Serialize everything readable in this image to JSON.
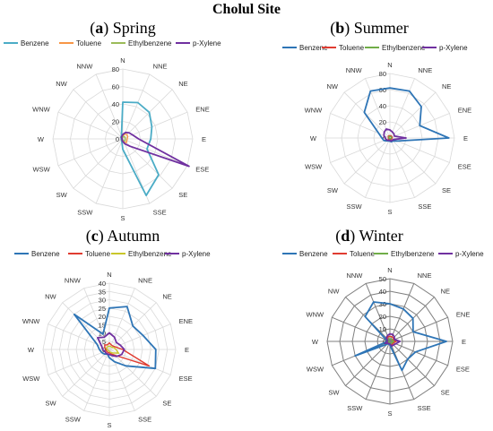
{
  "figure": {
    "title": "Cholul Site"
  },
  "colors": {
    "Benzene": "#2e75b6",
    "Toluene": "#ed7d31",
    "Ethylbenzene": "#a9d18e",
    "p-Xylene": "#7030a0",
    "Toluene_red": "#e03c31",
    "Ethylbenzene_green": "#70ad47"
  },
  "chart_data": [
    {
      "type": "radar",
      "panel_letter": "(a)",
      "panel_name": "Spring",
      "directions": [
        "N",
        "NNE",
        "NE",
        "ENE",
        "E",
        "ESE",
        "SE",
        "SSE",
        "S",
        "SSW",
        "SW",
        "WSW",
        "W",
        "WNW",
        "NW",
        "NNW"
      ],
      "rmax": 80,
      "ticks": [
        0,
        20,
        40,
        60,
        80
      ],
      "legend_position": "top",
      "series": [
        {
          "name": "Benzene",
          "color": "#4bacc6",
          "values": [
            42,
            45,
            43,
            36,
            32,
            30,
            58,
            70,
            12,
            3,
            2,
            2,
            1,
            2,
            3,
            4
          ]
        },
        {
          "name": "Toluene",
          "color": "#f79646",
          "values": [
            3,
            6,
            7,
            6,
            5,
            5,
            6,
            4,
            2,
            1,
            1,
            1,
            1,
            1,
            1,
            2
          ]
        },
        {
          "name": "Ethylbenzene",
          "color": "#9bbb59",
          "values": [
            2,
            3,
            3,
            3,
            3,
            3,
            3,
            2,
            1,
            1,
            1,
            1,
            1,
            1,
            1,
            1
          ]
        },
        {
          "name": "p-Xylene",
          "color": "#7030a0",
          "values": [
            5,
            8,
            10,
            12,
            18,
            82,
            12,
            6,
            3,
            2,
            1,
            1,
            1,
            1,
            2,
            3
          ]
        }
      ]
    },
    {
      "type": "radar",
      "panel_letter": "(b)",
      "panel_name": "Summer",
      "directions": [
        "N",
        "NNE",
        "NE",
        "ENE",
        "E",
        "ESE",
        "SE",
        "SSE",
        "S",
        "SSW",
        "SW",
        "WSW",
        "W",
        "WNW",
        "NW",
        "NNW"
      ],
      "rmax": 80,
      "ticks": [
        0,
        20,
        40,
        60,
        80
      ],
      "legend_position": "top",
      "series": [
        {
          "name": "Benzene",
          "color": "#2e75b6",
          "values": [
            62,
            63,
            55,
            40,
            73,
            10,
            5,
            5,
            4,
            4,
            5,
            8,
            10,
            15,
            45,
            63
          ]
        },
        {
          "name": "Toluene",
          "color": "#e03c31",
          "values": [
            3,
            3,
            3,
            3,
            3,
            2,
            2,
            2,
            2,
            2,
            2,
            2,
            2,
            2,
            3,
            3
          ]
        },
        {
          "name": "Ethylbenzene",
          "color": "#70ad47",
          "values": [
            2,
            2,
            2,
            2,
            2,
            1,
            1,
            1,
            1,
            1,
            1,
            1,
            1,
            1,
            2,
            2
          ]
        },
        {
          "name": "p-Xylene",
          "color": "#7030a0",
          "values": [
            10,
            8,
            7,
            6,
            20,
            5,
            4,
            4,
            3,
            3,
            4,
            5,
            6,
            8,
            10,
            12
          ]
        }
      ]
    },
    {
      "type": "radar",
      "panel_letter": "(c)",
      "panel_name": "Autumn",
      "directions": [
        "N",
        "NNE",
        "NE",
        "ENE",
        "E",
        "ESE",
        "SE",
        "SSE",
        "S",
        "SSW",
        "SW",
        "WSW",
        "W",
        "WNW",
        "NW",
        "NNW"
      ],
      "rmax": 40,
      "ticks": [
        0,
        5,
        10,
        15,
        20,
        25,
        30,
        35,
        40
      ],
      "legend_position": "top",
      "series": [
        {
          "name": "Benzene",
          "color": "#2e75b6",
          "values": [
            25,
            28,
            20,
            22,
            28,
            30,
            14,
            8,
            5,
            3,
            4,
            5,
            6,
            8,
            30,
            10
          ]
        },
        {
          "name": "Toluene",
          "color": "#e03c31",
          "values": [
            4,
            3,
            3,
            4,
            8,
            26,
            5,
            3,
            2,
            2,
            2,
            2,
            2,
            3,
            4,
            3
          ]
        },
        {
          "name": "Ethylbenzene",
          "color": "#c9c62a",
          "values": [
            2,
            2,
            2,
            3,
            4,
            6,
            3,
            2,
            1,
            1,
            1,
            1,
            1,
            2,
            2,
            2
          ]
        },
        {
          "name": "p-Xylene",
          "color": "#7030a0",
          "values": [
            10,
            8,
            6,
            7,
            9,
            8,
            6,
            4,
            3,
            3,
            3,
            3,
            4,
            5,
            10,
            8
          ]
        }
      ]
    },
    {
      "type": "radar",
      "panel_letter": "(d)",
      "panel_name": "Winter",
      "directions": [
        "N",
        "NNE",
        "NE",
        "ENE",
        "E",
        "ESE",
        "SE",
        "SSE",
        "S",
        "SSW",
        "SW",
        "WSW",
        "W",
        "WNW",
        "NW",
        "NNW"
      ],
      "rmax": 50,
      "ticks": [
        0,
        10,
        20,
        30,
        40,
        50
      ],
      "legend_position": "top",
      "series": [
        {
          "name": "Benzene",
          "color": "#2e75b6",
          "values": [
            30,
            28,
            26,
            20,
            45,
            22,
            20,
            25,
            3,
            2,
            3,
            30,
            2,
            3,
            28,
            34
          ]
        },
        {
          "name": "Toluene",
          "color": "#e03c31",
          "values": [
            4,
            4,
            4,
            3,
            5,
            3,
            3,
            3,
            2,
            2,
            2,
            3,
            2,
            2,
            3,
            4
          ]
        },
        {
          "name": "Ethylbenzene",
          "color": "#70ad47",
          "values": [
            2,
            2,
            2,
            2,
            3,
            2,
            2,
            2,
            1,
            1,
            1,
            2,
            1,
            1,
            2,
            2
          ]
        },
        {
          "name": "p-Xylene",
          "color": "#7030a0",
          "values": [
            6,
            6,
            5,
            4,
            8,
            5,
            4,
            4,
            2,
            2,
            2,
            4,
            2,
            2,
            4,
            5
          ]
        }
      ]
    }
  ]
}
